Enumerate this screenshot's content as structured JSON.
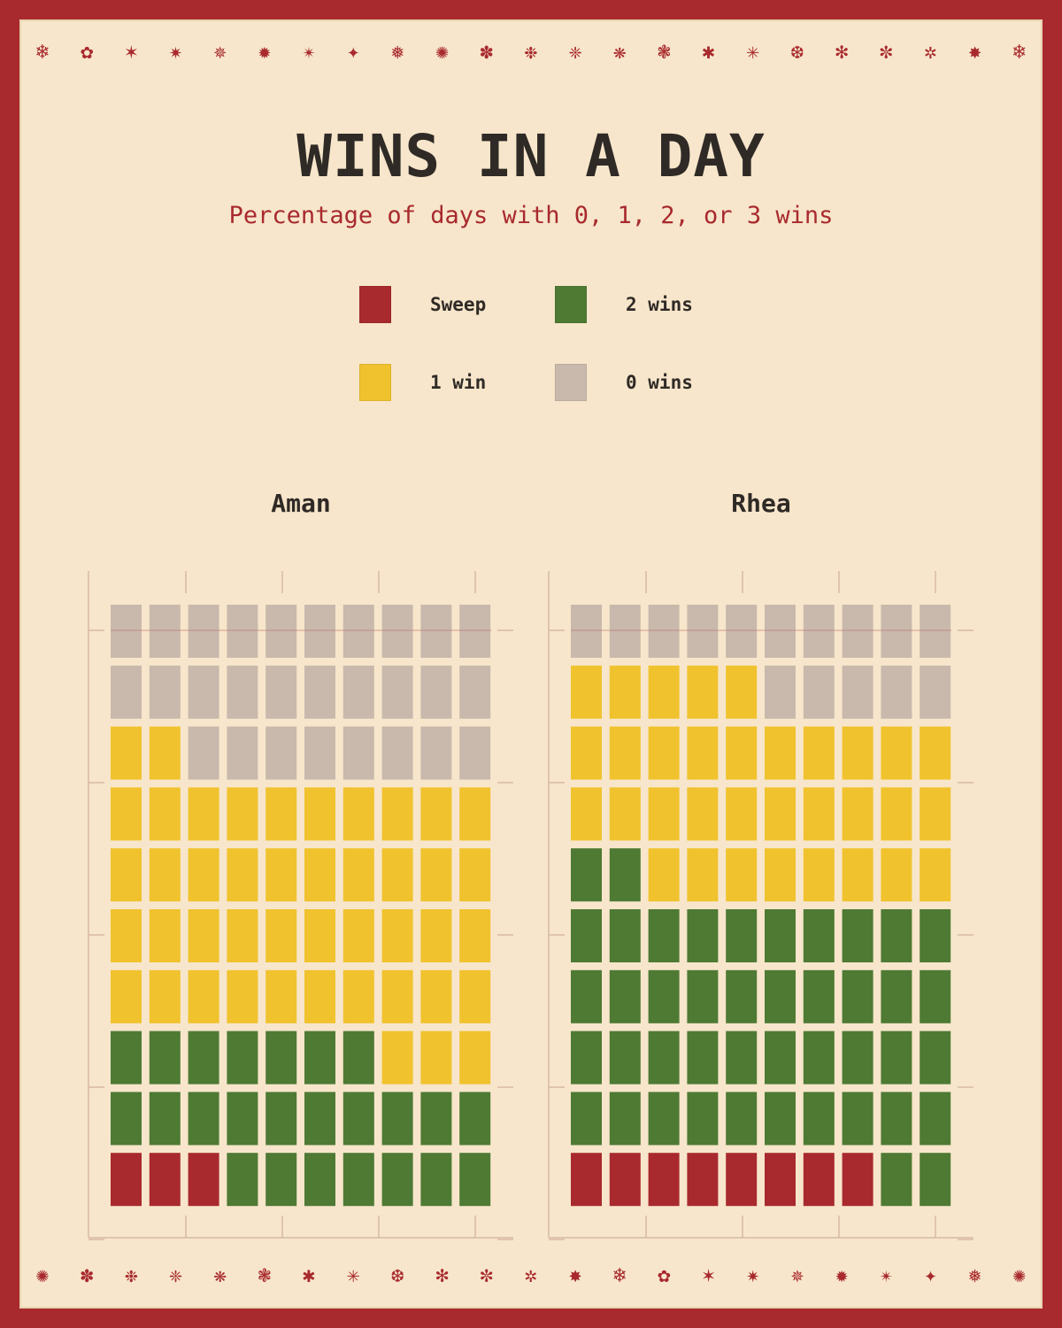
{
  "title": "WINS IN A DAY",
  "subtitle": "Percentage of days with 0, 1, 2, or 3 wins",
  "legend": [
    {
      "label": "Sweep",
      "color": "#a82a2e"
    },
    {
      "label": "2 wins",
      "color": "#4e7a34"
    },
    {
      "label": "1 win",
      "color": "#f0c22e"
    },
    {
      "label": "0 wins",
      "color": "#c9b9ac"
    }
  ],
  "colors": {
    "background": "#a82a2e",
    "card": "#f7e6cb",
    "text": "#2f2a26",
    "accent": "#a82a2e"
  },
  "chart_data": {
    "type": "waffle",
    "grid": {
      "rows": 10,
      "columns": 10,
      "unit": "percent of days"
    },
    "categories": [
      "Sweep",
      "2 wins",
      "1 win",
      "0 wins"
    ],
    "fill_order": "bottom-left to top-right, row by row",
    "series": [
      {
        "name": "Aman",
        "values": [
          3,
          24,
          45,
          28
        ]
      },
      {
        "name": "Rhea",
        "values": [
          8,
          44,
          33,
          15
        ]
      }
    ]
  }
}
